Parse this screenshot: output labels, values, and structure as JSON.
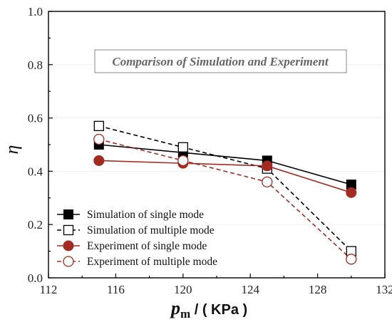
{
  "chart_data": {
    "type": "line",
    "title_box": "Comparison of Simulation and Experiment",
    "ylabel": "η",
    "xlabel": {
      "var": "p",
      "sub": "m",
      "unit": " / ( KPa )"
    },
    "xlim": [
      112,
      132
    ],
    "ylim": [
      0.0,
      1.0
    ],
    "x_ticks": [
      "112",
      "116",
      "120",
      "124",
      "128",
      "132"
    ],
    "y_ticks": [
      "0.0",
      "0.2",
      "0.4",
      "0.6",
      "0.8",
      "1.0"
    ],
    "legend_position": "bottom-left",
    "x": [
      115,
      120,
      125,
      130
    ],
    "series": [
      {
        "name": "Simulation of single mode",
        "values": [
          0.5,
          0.47,
          0.44,
          0.35
        ],
        "color": "#000000",
        "marker": "filled-square",
        "line": "solid"
      },
      {
        "name": "Simulation of multiple mode",
        "values": [
          0.57,
          0.49,
          0.41,
          0.1
        ],
        "color": "#000000",
        "marker": "open-square",
        "line": "dashed"
      },
      {
        "name": "Experiment of single mode",
        "values": [
          0.44,
          0.43,
          0.42,
          0.32
        ],
        "color": "#a52a22",
        "marker": "filled-circle",
        "line": "solid"
      },
      {
        "name": "Experiment of multiple mode",
        "values": [
          0.52,
          0.44,
          0.36,
          0.07
        ],
        "color": "#a52a22",
        "marker": "open-circle",
        "line": "dashed"
      }
    ]
  }
}
